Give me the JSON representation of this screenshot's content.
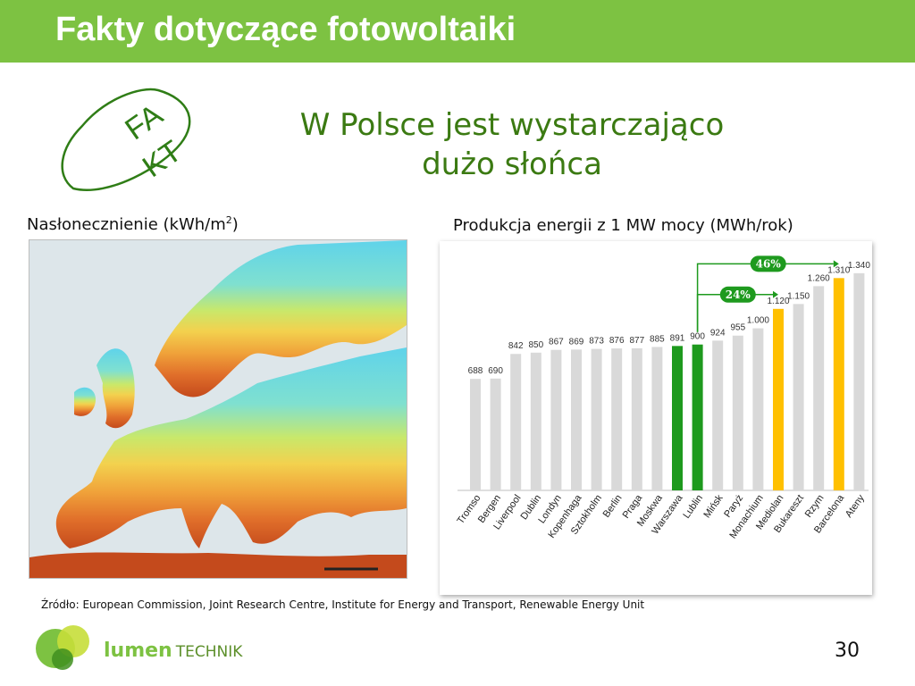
{
  "header": {
    "title": "Fakty dotyczące fotowoltaiki"
  },
  "stamp": {
    "line1": "FA",
    "line2": "KT"
  },
  "subtitle": {
    "line1": "W Polsce jest wystarczająco",
    "line2": "dużo słońca"
  },
  "map": {
    "caption_prefix": "Nasłonecznienie (kWh/m",
    "caption_sup": "2",
    "caption_suffix": ")"
  },
  "chart_data": {
    "type": "bar",
    "title": "Produkcja energii z 1 MW mocy (MWh/rok)",
    "categories": [
      "Tromso",
      "Bergen",
      "Liverpool",
      "Dublin",
      "Londyn",
      "Kopenhaga",
      "Sztokholm",
      "Berlin",
      "Praga",
      "Moskwa",
      "Warszawa",
      "Lublin",
      "Mińsk",
      "Paryż",
      "Monachium",
      "Mediolan",
      "Bukareszt",
      "Rzym",
      "Barcelona",
      "Ateny"
    ],
    "values": [
      688,
      690,
      842,
      850,
      867,
      869,
      873,
      876,
      877,
      885,
      891,
      900,
      924,
      955,
      1000,
      1120,
      1150,
      1260,
      1310,
      1340
    ],
    "value_labels": [
      "688",
      "690",
      "842",
      "850",
      "867",
      "869",
      "873",
      "876",
      "877",
      "885",
      "891",
      "900",
      "924",
      "955",
      "1.000",
      "1.120",
      "1.150",
      "1.260",
      "1.310",
      "1.340"
    ],
    "highlight": {
      "Warszawa": "#1e9a1e",
      "Lublin": "#1e9a1e",
      "Mediolan": "#ffc000",
      "Barcelona": "#ffc000"
    },
    "default_color": "#d9d9d9",
    "ylim": [
      0,
      1400
    ],
    "annotations": [
      {
        "label": "46%",
        "from": "Lublin",
        "to": "Barcelona"
      },
      {
        "label": "24%",
        "from": "Lublin",
        "to": "Mediolan"
      }
    ],
    "grid": false
  },
  "source": {
    "text": "Źródło: European Commission, Joint Research Centre, Institute for Energy and Transport, Renewable  Energy Unit"
  },
  "logo": {
    "lumen": "lumen",
    "technik": "TECHNIK"
  },
  "page": {
    "number": "30"
  }
}
